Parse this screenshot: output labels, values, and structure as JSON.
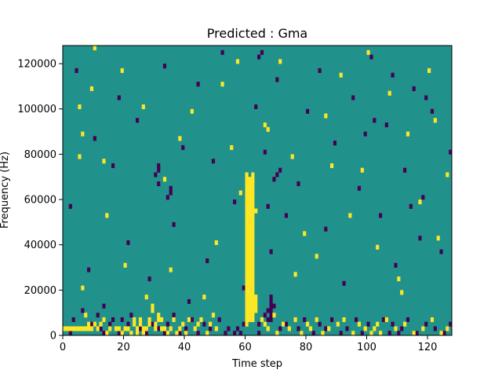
{
  "chart_data": {
    "type": "heatmap",
    "title": "Predicted : Gma",
    "xlabel": "Time step",
    "ylabel": "Frequency (Hz)",
    "xlim": [
      0,
      128
    ],
    "ylim": [
      0,
      128000
    ],
    "x_ticks": [
      0,
      20,
      40,
      60,
      80,
      100,
      120
    ],
    "y_ticks": [
      0,
      20000,
      40000,
      60000,
      80000,
      100000,
      120000
    ],
    "x_tick_labels": [
      "0",
      "20",
      "40",
      "60",
      "80",
      "100",
      "120"
    ],
    "y_tick_labels": [
      "0",
      "20000",
      "40000",
      "60000",
      "80000",
      "100000",
      "120000"
    ],
    "grid": false,
    "colors": {
      "background": "#21918c",
      "high": "#fde725",
      "low": "#440154"
    },
    "value_levels": [
      "low",
      "background",
      "high"
    ],
    "n_time_steps": 128,
    "n_freq_bins": 64,
    "note_cells": {
      "high": [
        [
          0,
          1
        ],
        [
          1,
          1
        ],
        [
          2,
          1
        ],
        [
          3,
          1
        ],
        [
          4,
          1
        ],
        [
          5,
          1
        ],
        [
          6,
          1
        ],
        [
          7,
          1
        ],
        [
          8,
          1
        ],
        [
          8,
          2
        ],
        [
          9,
          1
        ],
        [
          7,
          4
        ],
        [
          10,
          2
        ],
        [
          11,
          1
        ],
        [
          12,
          2
        ],
        [
          13,
          3
        ],
        [
          14,
          0
        ],
        [
          15,
          1
        ],
        [
          17,
          1
        ],
        [
          18,
          1
        ],
        [
          19,
          0
        ],
        [
          20,
          1
        ],
        [
          21,
          1
        ],
        [
          22,
          0
        ],
        [
          23,
          2
        ],
        [
          23,
          3
        ],
        [
          24,
          0
        ],
        [
          24,
          1
        ],
        [
          25,
          2
        ],
        [
          25,
          3
        ],
        [
          26,
          0
        ],
        [
          26,
          1
        ],
        [
          27,
          1
        ],
        [
          28,
          2
        ],
        [
          28,
          3
        ],
        [
          29,
          5
        ],
        [
          29,
          6
        ],
        [
          30,
          1
        ],
        [
          30,
          2
        ],
        [
          31,
          3
        ],
        [
          31,
          4
        ],
        [
          32,
          3
        ],
        [
          32,
          1
        ],
        [
          33,
          1
        ],
        [
          34,
          0
        ],
        [
          35,
          1
        ],
        [
          36,
          3
        ],
        [
          37,
          0
        ],
        [
          38,
          1
        ],
        [
          39,
          2
        ],
        [
          40,
          0
        ],
        [
          41,
          3
        ],
        [
          43,
          1
        ],
        [
          44,
          2
        ],
        [
          45,
          3
        ],
        [
          47,
          0
        ],
        [
          48,
          2
        ],
        [
          49,
          4
        ],
        [
          50,
          1
        ],
        [
          60,
          2
        ],
        [
          60,
          3
        ],
        [
          60,
          4
        ],
        [
          60,
          5
        ],
        [
          60,
          6
        ],
        [
          60,
          7
        ],
        [
          60,
          8
        ],
        [
          60,
          9
        ],
        [
          60,
          10
        ],
        [
          60,
          11
        ],
        [
          60,
          12
        ],
        [
          60,
          13
        ],
        [
          60,
          14
        ],
        [
          60,
          15
        ],
        [
          60,
          16
        ],
        [
          60,
          17
        ],
        [
          60,
          18
        ],
        [
          60,
          19
        ],
        [
          60,
          20
        ],
        [
          60,
          21
        ],
        [
          60,
          22
        ],
        [
          60,
          23
        ],
        [
          60,
          24
        ],
        [
          60,
          25
        ],
        [
          60,
          26
        ],
        [
          60,
          27
        ],
        [
          60,
          28
        ],
        [
          60,
          29
        ],
        [
          60,
          30
        ],
        [
          60,
          31
        ],
        [
          60,
          32
        ],
        [
          60,
          33
        ],
        [
          60,
          34
        ],
        [
          60,
          35
        ],
        [
          61,
          3
        ],
        [
          61,
          4
        ],
        [
          61,
          5
        ],
        [
          61,
          6
        ],
        [
          61,
          7
        ],
        [
          61,
          8
        ],
        [
          61,
          9
        ],
        [
          61,
          10
        ],
        [
          61,
          11
        ],
        [
          61,
          12
        ],
        [
          61,
          13
        ],
        [
          61,
          14
        ],
        [
          61,
          15
        ],
        [
          61,
          16
        ],
        [
          61,
          17
        ],
        [
          61,
          18
        ],
        [
          61,
          19
        ],
        [
          61,
          20
        ],
        [
          61,
          21
        ],
        [
          61,
          22
        ],
        [
          61,
          23
        ],
        [
          61,
          24
        ],
        [
          61,
          25
        ],
        [
          61,
          26
        ],
        [
          61,
          27
        ],
        [
          61,
          28
        ],
        [
          61,
          29
        ],
        [
          61,
          30
        ],
        [
          61,
          31
        ],
        [
          61,
          32
        ],
        [
          61,
          33
        ],
        [
          61,
          34
        ],
        [
          62,
          3
        ],
        [
          62,
          4
        ],
        [
          62,
          5
        ],
        [
          62,
          6
        ],
        [
          62,
          7
        ],
        [
          62,
          8
        ],
        [
          62,
          9
        ],
        [
          62,
          10
        ],
        [
          62,
          11
        ],
        [
          62,
          12
        ],
        [
          62,
          13
        ],
        [
          62,
          14
        ],
        [
          62,
          15
        ],
        [
          62,
          16
        ],
        [
          62,
          17
        ],
        [
          62,
          18
        ],
        [
          62,
          19
        ],
        [
          62,
          20
        ],
        [
          62,
          21
        ],
        [
          62,
          22
        ],
        [
          62,
          23
        ],
        [
          62,
          24
        ],
        [
          62,
          25
        ],
        [
          62,
          26
        ],
        [
          62,
          27
        ],
        [
          62,
          28
        ],
        [
          62,
          29
        ],
        [
          62,
          30
        ],
        [
          62,
          31
        ],
        [
          62,
          32
        ],
        [
          62,
          33
        ],
        [
          62,
          34
        ],
        [
          62,
          35
        ],
        [
          63,
          5
        ],
        [
          63,
          6
        ],
        [
          63,
          7
        ],
        [
          63,
          8
        ],
        [
          65,
          3
        ],
        [
          66,
          2
        ],
        [
          67,
          1
        ],
        [
          69,
          4
        ],
        [
          70,
          0
        ],
        [
          72,
          2
        ],
        [
          74,
          1
        ],
        [
          76,
          3
        ],
        [
          78,
          0
        ],
        [
          80,
          2
        ],
        [
          81,
          1
        ],
        [
          83,
          3
        ],
        [
          85,
          0
        ],
        [
          87,
          1
        ],
        [
          90,
          2
        ],
        [
          92,
          3
        ],
        [
          95,
          0
        ],
        [
          97,
          2
        ],
        [
          99,
          1
        ],
        [
          101,
          0
        ],
        [
          102,
          1
        ],
        [
          103,
          2
        ],
        [
          104,
          0
        ],
        [
          106,
          3
        ],
        [
          109,
          1
        ],
        [
          112,
          2
        ],
        [
          115,
          0
        ],
        [
          118,
          1
        ],
        [
          121,
          3
        ],
        [
          124,
          0
        ],
        [
          126,
          1
        ],
        [
          5,
          50
        ],
        [
          5,
          39
        ],
        [
          6,
          44
        ],
        [
          9,
          54
        ],
        [
          10,
          63
        ],
        [
          13,
          38
        ],
        [
          19,
          58
        ],
        [
          20,
          15
        ],
        [
          26,
          50
        ],
        [
          33,
          34
        ],
        [
          35,
          14
        ],
        [
          42,
          49
        ],
        [
          46,
          8
        ],
        [
          52,
          55
        ],
        [
          55,
          41
        ],
        [
          58,
          31
        ],
        [
          63,
          27
        ],
        [
          67,
          45
        ],
        [
          71,
          60
        ],
        [
          75,
          39
        ],
        [
          79,
          22
        ],
        [
          83,
          17
        ],
        [
          86,
          48
        ],
        [
          91,
          57
        ],
        [
          94,
          26
        ],
        [
          98,
          36
        ],
        [
          103,
          19
        ],
        [
          107,
          53
        ],
        [
          110,
          12
        ],
        [
          113,
          44
        ],
        [
          117,
          29
        ],
        [
          120,
          58
        ],
        [
          123,
          21
        ],
        [
          126,
          35
        ],
        [
          6,
          10
        ],
        [
          14,
          26
        ],
        [
          27,
          8
        ],
        [
          38,
          43
        ],
        [
          50,
          20
        ],
        [
          57,
          60
        ],
        [
          66,
          46
        ],
        [
          76,
          13
        ],
        [
          88,
          37
        ],
        [
          100,
          62
        ],
        [
          111,
          9
        ],
        [
          122,
          47
        ]
      ],
      "low": [
        [
          1,
          1
        ],
        [
          2,
          0
        ],
        [
          3,
          3
        ],
        [
          6,
          5
        ],
        [
          9,
          2
        ],
        [
          11,
          4
        ],
        [
          12,
          1
        ],
        [
          13,
          0
        ],
        [
          15,
          2
        ],
        [
          16,
          3
        ],
        [
          18,
          0
        ],
        [
          19,
          3
        ],
        [
          21,
          2
        ],
        [
          22,
          4
        ],
        [
          25,
          1
        ],
        [
          27,
          0
        ],
        [
          29,
          2
        ],
        [
          31,
          1
        ],
        [
          33,
          0
        ],
        [
          34,
          2
        ],
        [
          36,
          4
        ],
        [
          38,
          0
        ],
        [
          40,
          1
        ],
        [
          42,
          3
        ],
        [
          44,
          0
        ],
        [
          46,
          2
        ],
        [
          48,
          1
        ],
        [
          51,
          3
        ],
        [
          53,
          0
        ],
        [
          54,
          1
        ],
        [
          56,
          0
        ],
        [
          57,
          1
        ],
        [
          58,
          0
        ],
        [
          59,
          2
        ],
        [
          64,
          0
        ],
        [
          64,
          2
        ],
        [
          66,
          4
        ],
        [
          67,
          3
        ],
        [
          67,
          5
        ],
        [
          68,
          3
        ],
        [
          68,
          4
        ],
        [
          68,
          5
        ],
        [
          68,
          6
        ],
        [
          68,
          7
        ],
        [
          68,
          8
        ],
        [
          69,
          6
        ],
        [
          71,
          1
        ],
        [
          73,
          2
        ],
        [
          77,
          1
        ],
        [
          79,
          3
        ],
        [
          82,
          0
        ],
        [
          84,
          2
        ],
        [
          86,
          1
        ],
        [
          88,
          3
        ],
        [
          91,
          0
        ],
        [
          93,
          1
        ],
        [
          96,
          3
        ],
        [
          98,
          0
        ],
        [
          100,
          2
        ],
        [
          105,
          3
        ],
        [
          107,
          0
        ],
        [
          108,
          2
        ],
        [
          110,
          0
        ],
        [
          111,
          1
        ],
        [
          113,
          3
        ],
        [
          116,
          0
        ],
        [
          119,
          2
        ],
        [
          122,
          1
        ],
        [
          125,
          0
        ],
        [
          127,
          2
        ],
        [
          2,
          28
        ],
        [
          4,
          58
        ],
        [
          8,
          14
        ],
        [
          10,
          43
        ],
        [
          13,
          6
        ],
        [
          16,
          37
        ],
        [
          18,
          52
        ],
        [
          21,
          20
        ],
        [
          24,
          47
        ],
        [
          28,
          12
        ],
        [
          31,
          33
        ],
        [
          33,
          59
        ],
        [
          36,
          24
        ],
        [
          39,
          41
        ],
        [
          41,
          7
        ],
        [
          44,
          55
        ],
        [
          47,
          16
        ],
        [
          49,
          38
        ],
        [
          52,
          62
        ],
        [
          56,
          29
        ],
        [
          59,
          10
        ],
        [
          63,
          50
        ],
        [
          66,
          40
        ],
        [
          68,
          18
        ],
        [
          70,
          56
        ],
        [
          73,
          26
        ],
        [
          77,
          33
        ],
        [
          80,
          49
        ],
        [
          84,
          58
        ],
        [
          86,
          23
        ],
        [
          89,
          42
        ],
        [
          92,
          11
        ],
        [
          95,
          52
        ],
        [
          97,
          32
        ],
        [
          101,
          61
        ],
        [
          104,
          26
        ],
        [
          106,
          46
        ],
        [
          109,
          15
        ],
        [
          112,
          36
        ],
        [
          115,
          54
        ],
        [
          118,
          30
        ],
        [
          121,
          49
        ],
        [
          124,
          18
        ],
        [
          127,
          40
        ],
        [
          30,
          35
        ],
        [
          31,
          36
        ],
        [
          31,
          37
        ],
        [
          34,
          30
        ],
        [
          35,
          31
        ],
        [
          35,
          32
        ],
        [
          67,
          28
        ],
        [
          69,
          34
        ],
        [
          70,
          35
        ],
        [
          71,
          36
        ],
        [
          64,
          61
        ],
        [
          65,
          62
        ],
        [
          99,
          44
        ],
        [
          102,
          47
        ],
        [
          108,
          57
        ],
        [
          114,
          28
        ],
        [
          117,
          21
        ],
        [
          119,
          52
        ]
      ]
    }
  }
}
